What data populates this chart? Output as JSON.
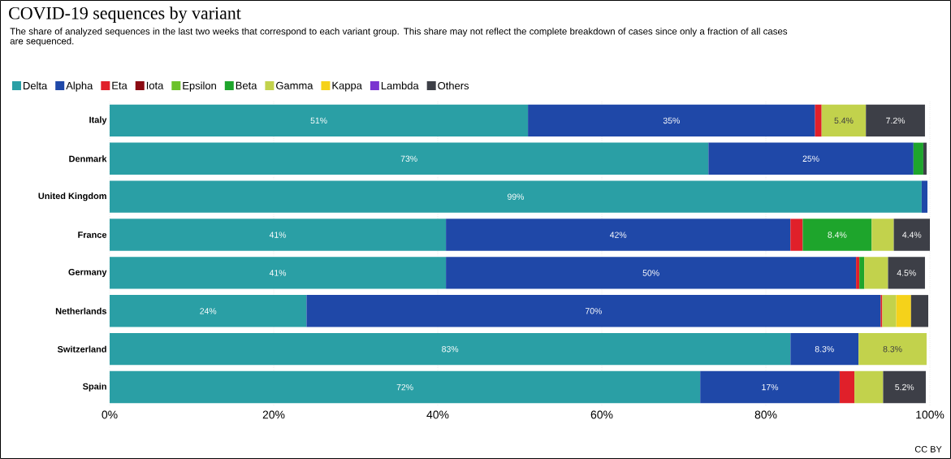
{
  "chart_data": {
    "type": "bar",
    "orientation": "horizontal",
    "stacked": true,
    "title": "COVID-19 sequences by variant",
    "subtitle": "The share of analyzed sequences in the last two weeks that correspond to each variant group. This share may not reflect the complete breakdown of cases since only a fraction of all cases are sequenced.",
    "categories": [
      "Italy",
      "Denmark",
      "United Kingdom",
      "France",
      "Germany",
      "Netherlands",
      "Switzerland",
      "Spain"
    ],
    "series": [
      {
        "name": "Delta",
        "color": "#2a9fa5",
        "values": [
          51,
          73,
          99,
          41,
          41,
          24,
          83,
          72
        ],
        "value_labels": [
          "51%",
          "73%",
          "99%",
          "41%",
          "41%",
          "24%",
          "83%",
          "72%"
        ]
      },
      {
        "name": "Alpha",
        "color": "#1f48a8",
        "values": [
          35,
          25,
          0.7,
          42,
          50,
          70,
          8.3,
          17
        ],
        "value_labels": [
          "35%",
          "25%",
          null,
          "42%",
          "50%",
          "70%",
          "8.3%",
          "17%"
        ]
      },
      {
        "name": "Eta",
        "color": "#e0202a",
        "values": [
          0.8,
          null,
          null,
          1.5,
          0.4,
          0.2,
          null,
          1.8
        ]
      },
      {
        "name": "Iota",
        "color": "#8b0a12",
        "values": [
          null,
          null,
          null,
          null,
          null,
          null,
          null,
          null
        ]
      },
      {
        "name": "Epsilon",
        "color": "#6cc22a",
        "values": [
          null,
          null,
          null,
          null,
          null,
          null,
          null,
          null
        ]
      },
      {
        "name": "Beta",
        "color": "#1ea52c",
        "values": [
          null,
          1.2,
          null,
          8.4,
          0.6,
          null,
          null,
          null
        ],
        "value_labels": [
          null,
          null,
          null,
          "8.4%",
          null,
          null,
          null,
          null
        ]
      },
      {
        "name": "Gamma",
        "color": "#c2d24c",
        "values": [
          5.4,
          null,
          null,
          2.7,
          2.9,
          1.7,
          8.3,
          3.5
        ],
        "value_labels": [
          "5.4%",
          null,
          null,
          null,
          null,
          null,
          "8.3%",
          null
        ]
      },
      {
        "name": "Kappa",
        "color": "#f5d21a",
        "values": [
          null,
          null,
          null,
          null,
          null,
          1.8,
          null,
          null
        ]
      },
      {
        "name": "Lambda",
        "color": "#7a35d0",
        "values": [
          null,
          null,
          null,
          null,
          null,
          null,
          null,
          null
        ]
      },
      {
        "name": "Others",
        "color": "#3d3f47",
        "values": [
          7.2,
          0.4,
          null,
          4.4,
          4.5,
          2.1,
          null,
          5.2
        ],
        "value_labels": [
          "7.2%",
          null,
          null,
          "4.4%",
          "4.5%",
          null,
          null,
          "5.2%"
        ]
      }
    ],
    "xlim": [
      0,
      100
    ],
    "xticks": [
      {
        "value": 0,
        "label": "0%"
      },
      {
        "value": 20,
        "label": "20%"
      },
      {
        "value": 40,
        "label": "40%"
      },
      {
        "value": 60,
        "label": "60%"
      },
      {
        "value": 80,
        "label": "80%"
      },
      {
        "value": 100,
        "label": "100%"
      }
    ],
    "grid": "x",
    "legend": "top left",
    "annotations": [
      "CC BY"
    ]
  }
}
